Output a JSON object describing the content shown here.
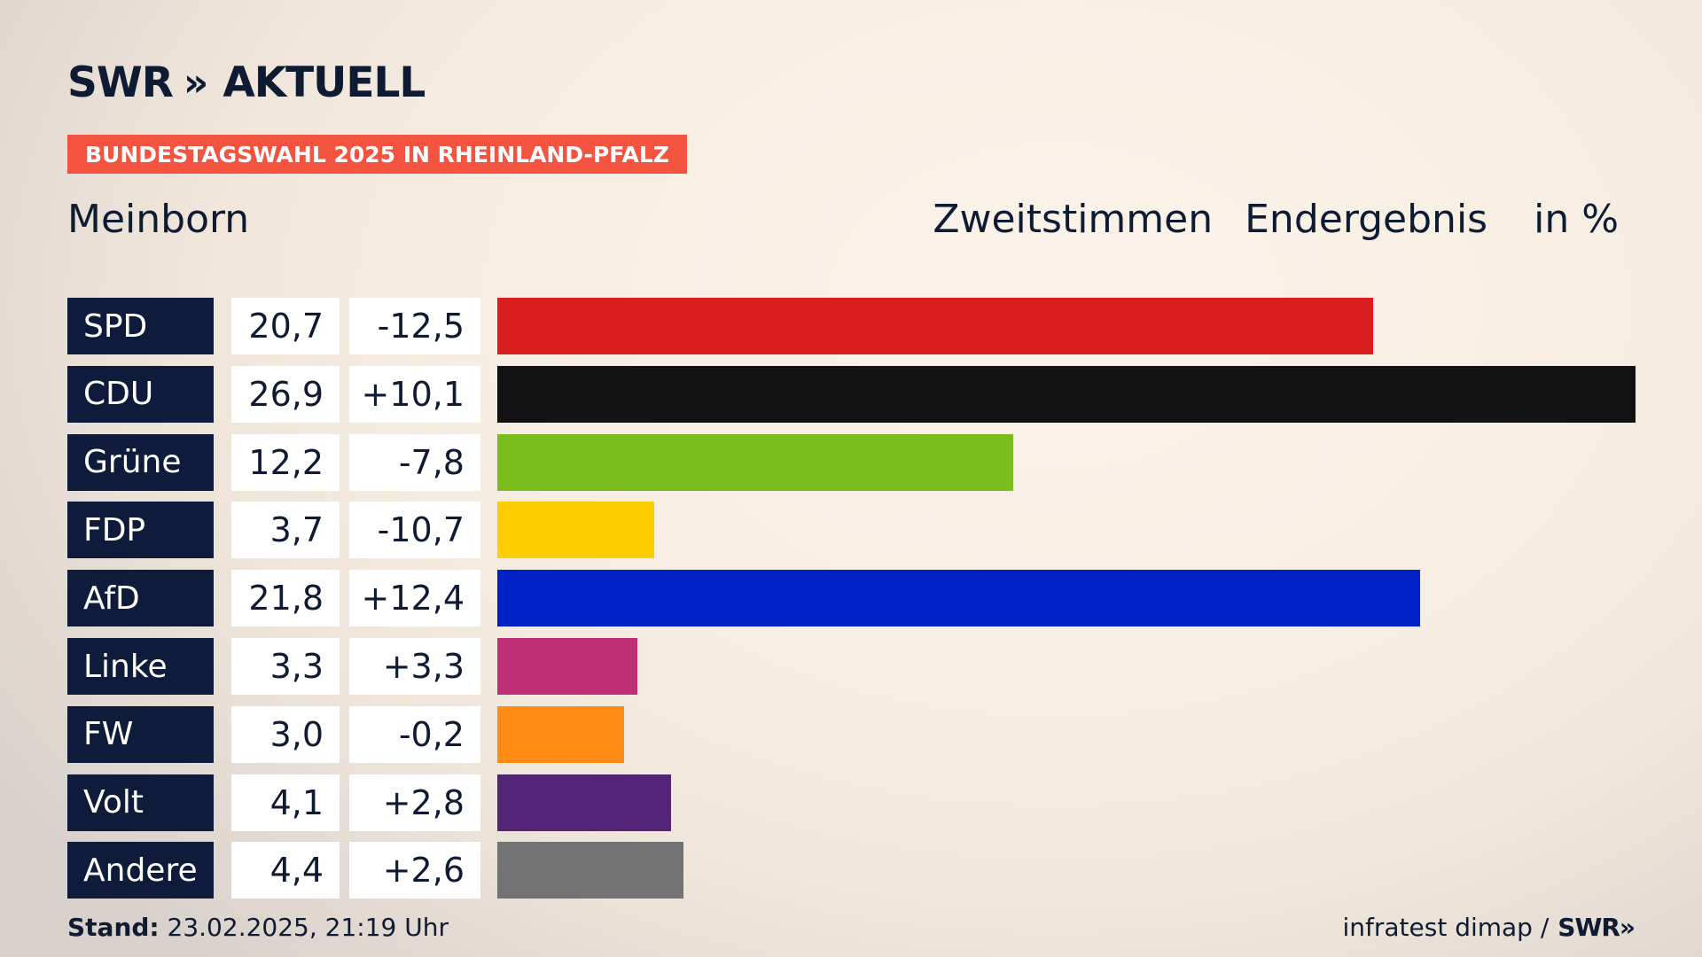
{
  "brand": {
    "logo_prefix": "SWR",
    "logo_chevrons": "»",
    "logo_suffix": "AKTUELL"
  },
  "tag": "BUNDESTAGSWAHL 2025 IN RHEINLAND-PFALZ",
  "place": "Meinborn",
  "subtitle": {
    "vote_type": "Zweitstimmen",
    "status": "Endergebnis",
    "unit": "in %"
  },
  "footer": {
    "stand_label": "Stand:",
    "stand_value": "23.02.2025, 21:19 Uhr",
    "source": "infratest dimap /",
    "source_brand": "SWR»"
  },
  "chart_data": {
    "type": "bar",
    "orientation": "horizontal",
    "title": "Zweitstimmen Endergebnis in %",
    "categories": [
      "SPD",
      "CDU",
      "Grüne",
      "FDP",
      "AfD",
      "Linke",
      "FW",
      "Volt",
      "Andere"
    ],
    "values": [
      20.7,
      26.9,
      12.2,
      3.7,
      21.8,
      3.3,
      3.0,
      4.1,
      4.4
    ],
    "values_label": [
      "20,7",
      "26,9",
      "12,2",
      "3,7",
      "21,8",
      "3,3",
      "3,0",
      "4,1",
      "4,4"
    ],
    "changes": [
      -12.5,
      10.1,
      -7.8,
      -10.7,
      12.4,
      3.3,
      -0.2,
      2.8,
      2.6
    ],
    "changes_label": [
      "-12,5",
      "+10,1",
      "-7,8",
      "-10,7",
      "+12,4",
      "+3,3",
      "-0,2",
      "+2,8",
      "+2,6"
    ],
    "colors": [
      "#d81e1e",
      "#121212",
      "#7abd1c",
      "#ffcc00",
      "#0021c6",
      "#bd3075",
      "#ff8c17",
      "#532476",
      "#737373"
    ],
    "xlim": [
      0,
      26.9
    ]
  }
}
